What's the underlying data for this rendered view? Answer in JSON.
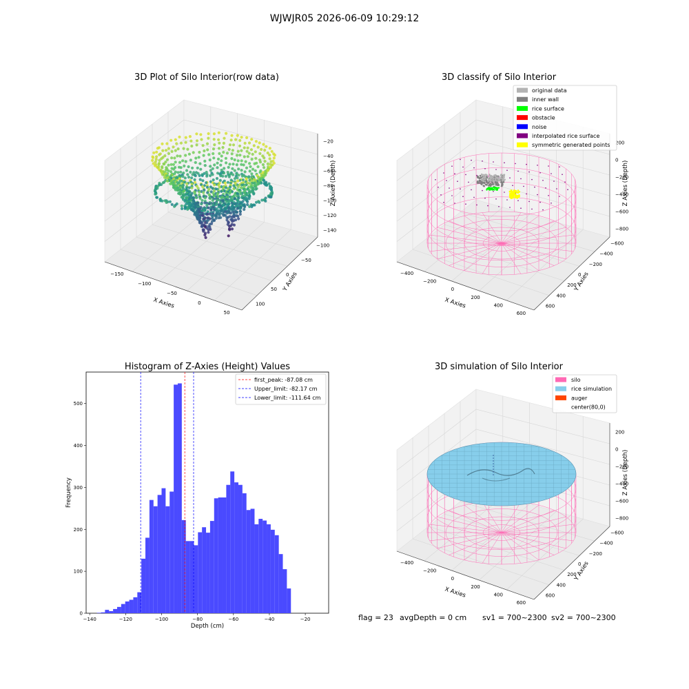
{
  "figure": {
    "suptitle": "WJWJR05 2026-06-09 10:29:12",
    "status": {
      "flag": "flag = 23",
      "avg_depth": "avgDepth = 0 cm",
      "sv1": "sv1 = 700~2300",
      "sv2": "sv2 = 700~2300"
    }
  },
  "chart_data": [
    {
      "id": "raw3d",
      "type": "scatter",
      "title": "3D Plot of Silo Interior(row data)",
      "xlabel": "X Axies",
      "ylabel": "Y Axies",
      "zlabel": "Z Axies (Depth)",
      "x_ticks": [
        "−150",
        "−100",
        "−50",
        "0",
        "50"
      ],
      "y_ticks": [
        "−100",
        "−50",
        "0",
        "50",
        "100"
      ],
      "z_ticks": [
        "−20",
        "−40",
        "−60",
        "−80",
        "−100",
        "−120",
        "−140"
      ],
      "xlim": [
        -165,
        80
      ],
      "ylim": [
        -110,
        110
      ],
      "zlim": [
        -145,
        -10
      ],
      "colormap": "viridis",
      "color_by": "z"
    },
    {
      "id": "classify3d",
      "type": "scatter",
      "title": "3D classify of Silo Interior",
      "xlabel": "X Axies",
      "ylabel": "Y Axies",
      "zlabel": "Z Axies (Depth)",
      "x_ticks": [
        "−400",
        "−200",
        "0",
        "200",
        "400",
        "600"
      ],
      "y_ticks": [
        "−600",
        "−400",
        "−200",
        "0",
        "200",
        "400",
        "600"
      ],
      "z_ticks": [
        "200",
        "0",
        "−200",
        "−400",
        "−600",
        "−800"
      ],
      "legend_position": "top-right",
      "legend": [
        {
          "label": "original data",
          "color": "#b3b3b3"
        },
        {
          "label": "inner wall",
          "color": "#808080"
        },
        {
          "label": "rice surface",
          "color": "#00ff00"
        },
        {
          "label": "obstacle",
          "color": "#ff0000"
        },
        {
          "label": "noise",
          "color": "#0000ff"
        },
        {
          "label": "interpolated rice surface",
          "color": "#800080"
        },
        {
          "label": "symmetric generated points",
          "color": "#ffff00"
        }
      ],
      "silo_color": "#ff69b4"
    },
    {
      "id": "histogram",
      "type": "bar",
      "title": "Histogram of Z-Axies (Height) Values",
      "xlabel": "Depth (cm)",
      "ylabel": "Frequency",
      "xlim": [
        -142,
        -7
      ],
      "ylim": [
        0,
        575
      ],
      "x_ticks": [
        -140,
        -120,
        -100,
        -80,
        -60,
        -40,
        -20
      ],
      "y_ticks": [
        0,
        100,
        200,
        300,
        400,
        500
      ],
      "bin_start": -136,
      "bin_width": 2.25,
      "values": [
        1,
        2,
        8,
        5,
        10,
        15,
        22,
        28,
        32,
        38,
        50,
        130,
        180,
        270,
        255,
        282,
        298,
        255,
        290,
        545,
        548,
        222,
        172,
        172,
        162,
        193,
        205,
        192,
        220,
        274,
        276,
        276,
        306,
        338,
        312,
        306,
        286,
        246,
        249,
        212,
        225,
        221,
        212,
        199,
        186,
        141,
        105,
        59
      ],
      "bar_color": "#4a4aff",
      "legend_position": "top-right",
      "lines": [
        {
          "label": "first_peak: -87.08 cm",
          "x": -87.08,
          "color": "#ff0000"
        },
        {
          "label": "Upper_limit: -82.17 cm",
          "x": -82.17,
          "color": "#0000ff"
        },
        {
          "label": "Lower_limit: -111.64 cm",
          "x": -111.64,
          "color": "#0000ff"
        }
      ]
    },
    {
      "id": "simulation3d",
      "type": "scatter",
      "title": "3D simulation of Silo Interior",
      "xlabel": "X Axies",
      "ylabel": "Y Axies",
      "zlabel": "Z Axies (Depth)",
      "x_ticks": [
        "−400",
        "−200",
        "0",
        "200",
        "400",
        "600"
      ],
      "y_ticks": [
        "−600",
        "−400",
        "−200",
        "0",
        "200",
        "400",
        "600"
      ],
      "z_ticks": [
        "200",
        "0",
        "−200",
        "−400",
        "−600",
        "−800"
      ],
      "legend_position": "top-right",
      "legend": [
        {
          "label": "silo",
          "color": "#ff69b4"
        },
        {
          "label": "rice simulation",
          "color": "#87ceeb"
        },
        {
          "label": "auger",
          "color": "#ff4500"
        },
        {
          "label": "center(80,0)",
          "color": ""
        }
      ],
      "surface_color": "#87ceeb"
    }
  ]
}
